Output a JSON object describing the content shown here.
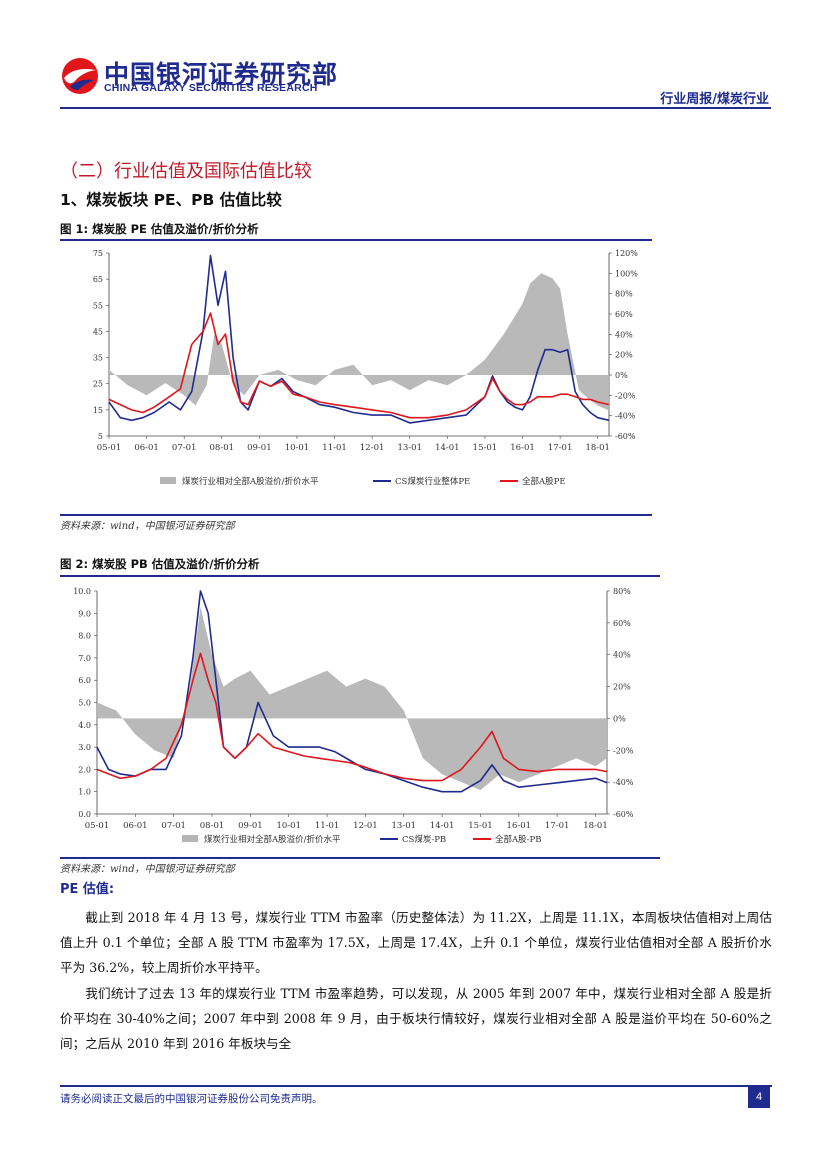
{
  "header": {
    "logo_cn": "中国银河证券研究部",
    "logo_en": "CHINA GALAXY SECURITIES RESEARCH",
    "tag": "行业周报/煤炭行业"
  },
  "section_title": "（二）行业估值及国际估值比较",
  "subsection_title": "1、煤炭板块 PE、PB 估值比较",
  "figures": [
    {
      "title": "图 1:  煤炭股 PE 估值及溢价/折价分析",
      "source": "资料来源：wind，中国银河证券研究部"
    },
    {
      "title": "图 2:  煤炭股 PB 估值及溢价/折价分析",
      "source": "资料来源：wind，中国银河证券研究部"
    }
  ],
  "chart_data": [
    {
      "type": "area",
      "title": "煤炭股 PE 估值及溢价/折价分析",
      "x_ticks": [
        "05-01",
        "06-01",
        "07-01",
        "08-01",
        "09-01",
        "10-01",
        "11-01",
        "12-01",
        "13-01",
        "14-01",
        "15-01",
        "16-01",
        "17-01",
        "18-01"
      ],
      "ylim": [
        5,
        75
      ],
      "y_ticks": [
        "75",
        "65",
        "55",
        "45",
        "35",
        "25",
        "15",
        "5"
      ],
      "y2lim": [
        -60,
        120
      ],
      "y2_ticks": [
        "120%",
        "100%",
        "80%",
        "60%",
        "40%",
        "20%",
        "0%",
        "-20%",
        "-40%",
        "-60%"
      ],
      "legend": [
        "煤炭行业相对全部A股溢价/折价水平",
        "CS煤炭行业整体PE",
        "全部A股PE"
      ],
      "series": [
        {
          "name": "CS煤炭行业整体PE",
          "axis": "left",
          "color": "#1f2b8f",
          "t": [
            0,
            0.3,
            0.6,
            0.9,
            1.2,
            1.6,
            1.9,
            2.2,
            2.5,
            2.7,
            2.9,
            3.1,
            3.3,
            3.5,
            3.7,
            4.0,
            4.3,
            4.6,
            4.9,
            5.2,
            5.6,
            6.0,
            6.5,
            7.0,
            7.5,
            8.0,
            8.5,
            9.0,
            9.5,
            10.0,
            10.2,
            10.4,
            10.6,
            10.8,
            11.0,
            11.2,
            11.4,
            11.6,
            11.8,
            12.0,
            12.2,
            12.4,
            12.6,
            12.8,
            13.0,
            13.3
          ],
          "v": [
            18,
            12,
            11,
            12,
            14,
            18,
            15,
            22,
            45,
            74,
            55,
            68,
            35,
            18,
            15,
            26,
            24,
            27,
            22,
            20,
            17,
            16,
            14,
            13,
            13,
            10,
            11,
            12,
            13,
            20,
            28,
            22,
            18,
            16,
            15,
            20,
            30,
            38,
            38,
            37,
            38,
            22,
            17,
            14,
            12,
            11
          ]
        },
        {
          "name": "全部A股PE",
          "axis": "left",
          "color": "#e0161b",
          "t": [
            0,
            0.3,
            0.6,
            0.9,
            1.2,
            1.6,
            1.9,
            2.2,
            2.5,
            2.7,
            2.9,
            3.1,
            3.3,
            3.5,
            3.7,
            4.0,
            4.3,
            4.6,
            4.9,
            5.2,
            5.6,
            6.0,
            6.5,
            7.0,
            7.5,
            8.0,
            8.5,
            9.0,
            9.5,
            10.0,
            10.2,
            10.4,
            10.6,
            10.8,
            11.0,
            11.2,
            11.4,
            11.6,
            11.8,
            12.0,
            12.2,
            12.4,
            12.6,
            12.8,
            13.0,
            13.3
          ],
          "v": [
            19,
            17,
            15,
            14,
            16,
            20,
            23,
            40,
            45,
            52,
            40,
            44,
            26,
            18,
            17,
            26,
            24,
            26,
            21,
            20,
            18,
            17,
            16,
            15,
            14,
            12,
            12,
            13,
            15,
            20,
            27,
            22,
            19,
            17,
            17,
            18,
            20,
            20,
            20,
            21,
            21,
            20,
            19,
            19,
            18,
            17
          ]
        },
        {
          "name": "煤炭行业相对全部A股溢价/折价水平",
          "axis": "right",
          "color": "#b5b5b5",
          "t": [
            0,
            0.5,
            1.0,
            1.5,
            2.0,
            2.3,
            2.6,
            2.8,
            3.0,
            3.3,
            3.6,
            4.0,
            4.5,
            5.0,
            5.5,
            6.0,
            6.5,
            7.0,
            7.5,
            8.0,
            8.5,
            9.0,
            9.5,
            10.0,
            10.5,
            11.0,
            11.2,
            11.5,
            11.8,
            12.0,
            12.2,
            12.5,
            12.8,
            13.0,
            13.3
          ],
          "v": [
            5,
            -10,
            -20,
            -8,
            -20,
            -30,
            -10,
            40,
            30,
            -10,
            -20,
            0,
            5,
            -5,
            -10,
            5,
            10,
            -10,
            -5,
            -15,
            -5,
            -10,
            0,
            15,
            40,
            70,
            90,
            100,
            95,
            85,
            40,
            -15,
            -25,
            -30,
            -35
          ]
        }
      ]
    },
    {
      "type": "area",
      "title": "煤炭股 PB 估值及溢价/折价分析",
      "x_ticks": [
        "05-01",
        "06-01",
        "07-01",
        "08-01",
        "09-01",
        "10-01",
        "11-01",
        "12-01",
        "13-01",
        "14-01",
        "15-01",
        "16-01",
        "17-01",
        "18-01"
      ],
      "ylim": [
        0,
        10
      ],
      "y_ticks": [
        "10.0",
        "9.0",
        "8.0",
        "7.0",
        "6.0",
        "5.0",
        "4.0",
        "3.0",
        "2.0",
        "1.0",
        "0.0"
      ],
      "y2lim": [
        -60,
        80
      ],
      "y2_ticks": [
        "80%",
        "60%",
        "40%",
        "20%",
        "0%",
        "-20%",
        "-40%",
        "-60%"
      ],
      "legend": [
        "煤炭行业相对全部A股溢价/折价水平",
        "CS煤炭-PB",
        "全部A股-PB"
      ],
      "series": [
        {
          "name": "CS煤炭-PB",
          "axis": "left",
          "color": "#1f2b8f",
          "t": [
            0,
            0.3,
            0.6,
            1.0,
            1.4,
            1.8,
            2.2,
            2.5,
            2.7,
            2.9,
            3.1,
            3.3,
            3.6,
            3.9,
            4.2,
            4.6,
            5.0,
            5.4,
            5.8,
            6.2,
            6.6,
            7.0,
            7.5,
            8.0,
            8.5,
            9.0,
            9.5,
            10.0,
            10.3,
            10.6,
            11.0,
            11.5,
            12.0,
            12.5,
            13.0,
            13.3
          ],
          "v": [
            3,
            2,
            1.8,
            1.7,
            2,
            2,
            3.5,
            7,
            10,
            9,
            6,
            3,
            2.5,
            3,
            5,
            3.5,
            3,
            3,
            3,
            2.8,
            2.4,
            2,
            1.8,
            1.5,
            1.2,
            1,
            1,
            1.5,
            2.2,
            1.5,
            1.2,
            1.3,
            1.4,
            1.5,
            1.6,
            1.4
          ]
        },
        {
          "name": "全部A股-PB",
          "axis": "left",
          "color": "#e0161b",
          "t": [
            0,
            0.3,
            0.6,
            1.0,
            1.4,
            1.8,
            2.2,
            2.5,
            2.7,
            2.9,
            3.1,
            3.3,
            3.6,
            3.9,
            4.2,
            4.6,
            5.0,
            5.4,
            5.8,
            6.2,
            6.6,
            7.0,
            7.5,
            8.0,
            8.5,
            9.0,
            9.5,
            10.0,
            10.3,
            10.6,
            11.0,
            11.5,
            12.0,
            12.5,
            13.0,
            13.3
          ],
          "v": [
            2,
            1.8,
            1.6,
            1.7,
            2,
            2.5,
            4,
            6,
            7.2,
            6,
            5,
            3,
            2.5,
            3,
            3.6,
            3,
            2.8,
            2.6,
            2.5,
            2.4,
            2.3,
            2.1,
            1.8,
            1.6,
            1.5,
            1.5,
            2,
            3,
            3.7,
            2.5,
            2,
            1.9,
            2,
            2,
            2,
            1.9
          ]
        },
        {
          "name": "煤炭行业相对全部A股溢价/折价水平",
          "axis": "right",
          "color": "#b5b5b5",
          "t": [
            0,
            0.5,
            1.0,
            1.5,
            2.0,
            2.4,
            2.7,
            3.0,
            3.3,
            3.6,
            4.0,
            4.5,
            5.0,
            5.5,
            6.0,
            6.5,
            7.0,
            7.5,
            8.0,
            8.5,
            9.0,
            9.5,
            10.0,
            10.5,
            11.0,
            11.5,
            12.0,
            12.5,
            13.0,
            13.3
          ],
          "v": [
            10,
            5,
            -10,
            -20,
            -25,
            15,
            70,
            40,
            20,
            25,
            30,
            15,
            20,
            25,
            30,
            20,
            25,
            20,
            5,
            -25,
            -35,
            -40,
            -45,
            -35,
            -40,
            -35,
            -30,
            -25,
            -30,
            -25
          ]
        }
      ]
    }
  ],
  "pe_heading": "PE 估值:",
  "paragraphs": [
    "截止到 2018 年 4 月 13 号，煤炭行业 TTM 市盈率（历史整体法）为 11.2X，上周是 11.1X，本周板块估值相对上周估值上升 0.1 个单位；全部 A 股 TTM 市盈率为 17.5X，上周是 17.4X，上升 0.1 个单位，煤炭行业估值相对全部 A 股折价水平为 36.2%，较上周折价水平持平。",
    "我们统计了过去 13 年的煤炭行业 TTM 市盈率趋势，可以发现，从 2005 年到 2007 年中，煤炭行业相对全部 A 股是折价平均在 30-40%之间；2007 年中到 2008 年 9 月，由于板块行情较好，煤炭行业相对全部 A 股是溢价平均在 50-60%之间；之后从 2010 年到 2016 年板块与全"
  ],
  "footer": {
    "note": "请务必阅读正文最后的中国银河证券股份公司免责声明。",
    "page": "4"
  },
  "colors": {
    "brand": "#1f2b8f",
    "accent": "#c0192a",
    "coal_line": "#1f2b8f",
    "a_share_line": "#e0161b",
    "premium_area": "#b5b5b5"
  }
}
